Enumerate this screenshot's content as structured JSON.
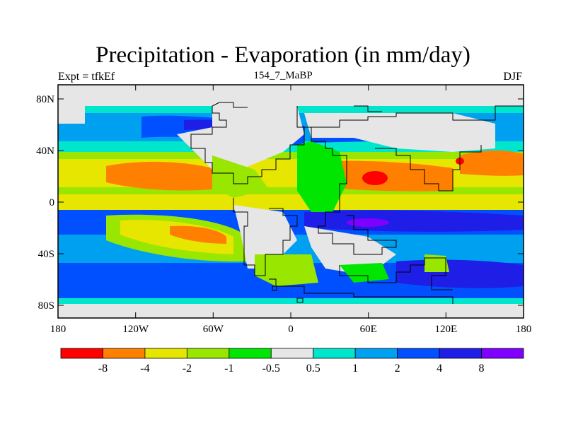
{
  "title": "Precipitation - Evaporation (in mm/day)",
  "header": {
    "left": "Expt = tfkEf",
    "center": "154_7_MaBP",
    "right": "DJF"
  },
  "map": {
    "projection": "cylindrical-equidistant",
    "lat_ticks": [
      "80N",
      "40N",
      "0",
      "40S",
      "80S"
    ],
    "lon_ticks": [
      "180",
      "120W",
      "60W",
      "0",
      "60E",
      "120E",
      "180"
    ],
    "land_fill": "#e6e6e6",
    "coastline_color": "#000000"
  },
  "colorbar": {
    "colors": [
      "#ff0000",
      "#ff8000",
      "#e6e600",
      "#99e600",
      "#00e600",
      "#e6e6e6",
      "#00e6cc",
      "#00a0f0",
      "#0050ff",
      "#1e1ee6",
      "#8000ff"
    ],
    "labels": [
      "-8",
      "-4",
      "-2",
      "-1",
      "-0.5",
      "0.5",
      "1",
      "2",
      "4",
      "8"
    ]
  }
}
